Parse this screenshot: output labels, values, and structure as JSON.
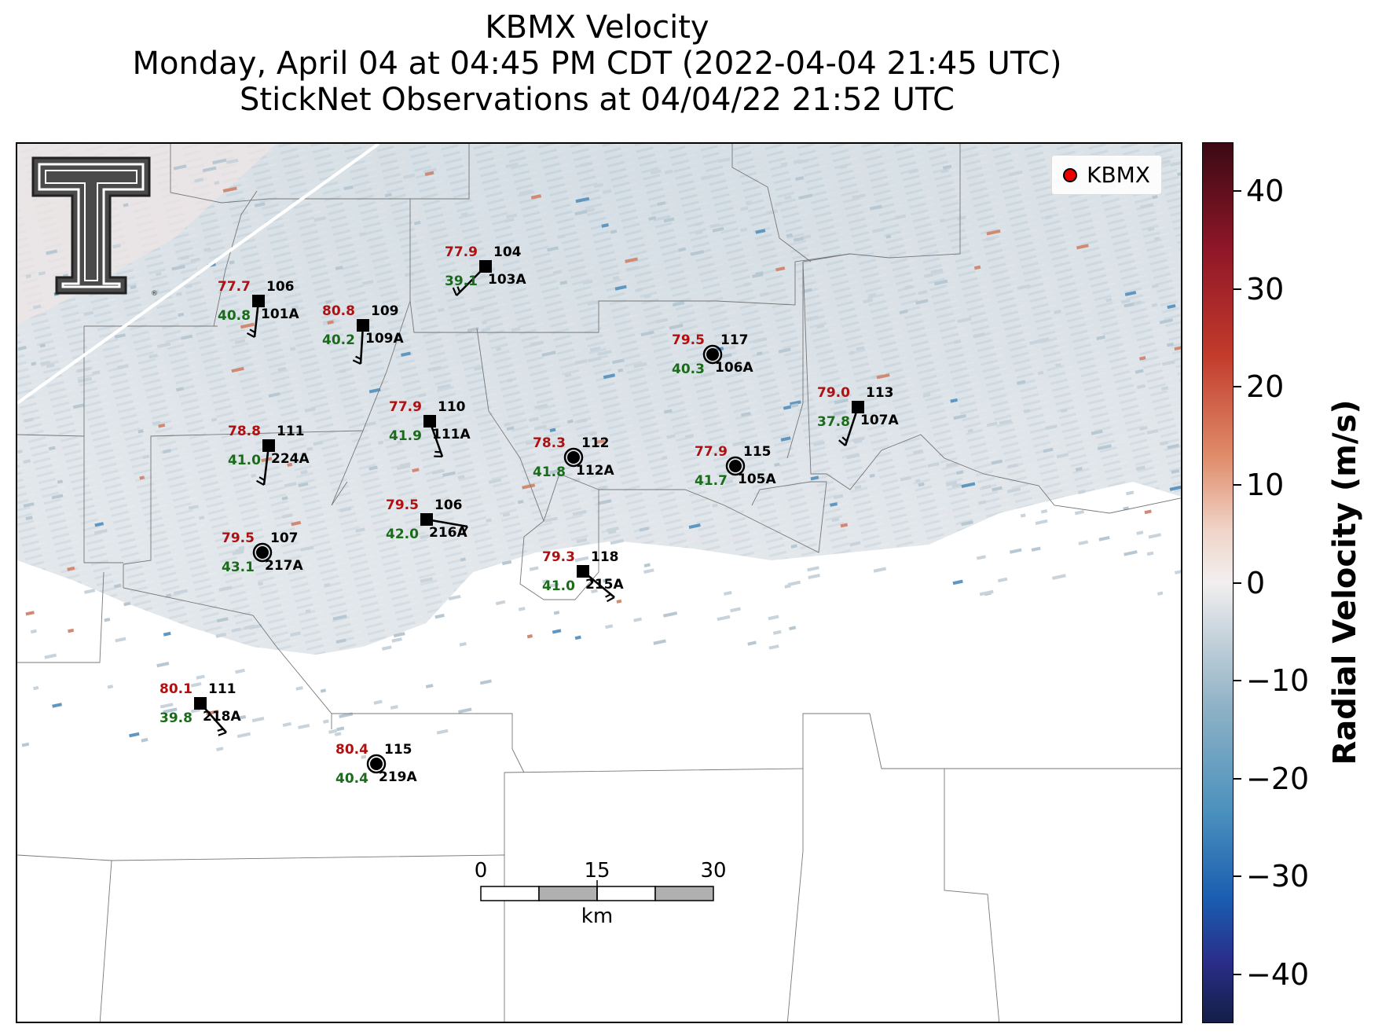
{
  "title": {
    "line1": "KBMX Velocity",
    "line2": "Monday, April 04 at 04:45 PM CDT (2022-04-04 21:45 UTC)",
    "line3": "StickNet Observations at 04/04/22 21:52 UTC"
  },
  "legend": {
    "label": "KBMX",
    "marker_color": "#ee0000"
  },
  "colorbar": {
    "label": "Radial Velocity (m/s)",
    "ticks": [
      "40",
      "30",
      "20",
      "10",
      "0",
      "−10",
      "−20",
      "−30",
      "−40"
    ],
    "range": [
      -45,
      45
    ]
  },
  "scale_bar": {
    "labels": [
      "0",
      "15",
      "30"
    ],
    "unit": "km"
  },
  "logo": {
    "name": "texas-tech-double-t-logo",
    "text": "T"
  },
  "stations": [
    {
      "temp": "77.7",
      "dew": "40.8",
      "direction": "106",
      "id": "101A",
      "marker": "square"
    },
    {
      "temp": "80.8",
      "dew": "40.2",
      "direction": "109",
      "id": "109A",
      "marker": "square"
    },
    {
      "temp": "77.9",
      "dew": "39.1",
      "direction": "104",
      "id": "103A",
      "marker": "square"
    },
    {
      "temp": "79.5",
      "dew": "40.3",
      "direction": "117",
      "id": "106A",
      "marker": "circle"
    },
    {
      "temp": "79.0",
      "dew": "37.8",
      "direction": "113",
      "id": "107A",
      "marker": "square"
    },
    {
      "temp": "77.9",
      "dew": "41.9",
      "direction": "110",
      "id": "111A",
      "marker": "square"
    },
    {
      "temp": "78.8",
      "dew": "41.0",
      "direction": "111",
      "id": "224A",
      "marker": "square"
    },
    {
      "temp": "78.3",
      "dew": "41.8",
      "direction": "112",
      "id": "112A",
      "marker": "circle"
    },
    {
      "temp": "77.9",
      "dew": "41.7",
      "direction": "115",
      "id": "105A",
      "marker": "circle"
    },
    {
      "temp": "79.5",
      "dew": "42.0",
      "direction": "106",
      "id": "216A",
      "marker": "square"
    },
    {
      "temp": "79.5",
      "dew": "43.1",
      "direction": "107",
      "id": "217A",
      "marker": "circle"
    },
    {
      "temp": "79.3",
      "dew": "41.0",
      "direction": "118",
      "id": "215A",
      "marker": "square"
    },
    {
      "temp": "80.1",
      "dew": "39.8",
      "direction": "111",
      "id": "218A",
      "marker": "square"
    },
    {
      "temp": "80.4",
      "dew": "40.4",
      "direction": "115",
      "id": "219A",
      "marker": "circle"
    }
  ]
}
